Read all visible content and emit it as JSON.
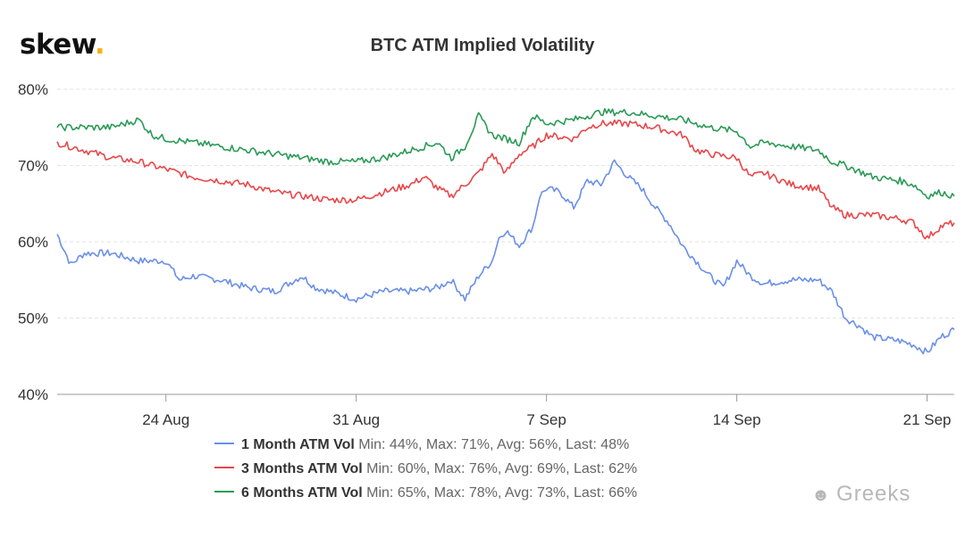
{
  "logo": {
    "text": "skew",
    "dot": "."
  },
  "watermark": {
    "text": "Greeks",
    "icon": "wechat-icon"
  },
  "colors": {
    "s1": "#6a8fe8",
    "s2": "#e8474a",
    "s3": "#2a9a55",
    "grid": "#e3e3e3"
  },
  "chart_data": {
    "type": "line",
    "title": "BTC ATM Implied Volatility",
    "xlabel": "",
    "ylabel": "",
    "ylim": [
      40,
      80
    ],
    "yticks": [
      "40%",
      "50%",
      "60%",
      "70%",
      "80%"
    ],
    "xlim": [
      "2020-08-20",
      "2020-09-22"
    ],
    "xticks": [
      {
        "date": "2020-08-24",
        "label": "24 Aug"
      },
      {
        "date": "2020-08-31",
        "label": "31 Aug"
      },
      {
        "date": "2020-09-07",
        "label": "7 Sep"
      },
      {
        "date": "2020-09-14",
        "label": "14 Sep"
      },
      {
        "date": "2020-09-21",
        "label": "21 Sep"
      }
    ],
    "grid": "horizontal",
    "legend_position": "bottom",
    "series": [
      {
        "name": "1 Month ATM Vol",
        "stats": "Min: 44%, Max: 71%, Avg: 56%, Last: 48%",
        "color": "#6a8fe8",
        "points": [
          [
            "2020-08-20",
            61
          ],
          [
            "2020-08-20T12:00",
            57
          ],
          [
            "2020-08-21",
            58.5
          ],
          [
            "2020-08-22",
            58.5
          ],
          [
            "2020-08-23",
            57.5
          ],
          [
            "2020-08-24",
            57.5
          ],
          [
            "2020-08-24T12:00",
            55
          ],
          [
            "2020-08-25",
            55.5
          ],
          [
            "2020-08-26",
            55
          ],
          [
            "2020-08-27",
            54
          ],
          [
            "2020-08-28",
            53.5
          ],
          [
            "2020-08-29",
            55.5
          ],
          [
            "2020-08-29T12:00",
            54
          ],
          [
            "2020-08-30",
            53.5
          ],
          [
            "2020-08-31",
            52.5
          ],
          [
            "2020-09-01",
            53.5
          ],
          [
            "2020-09-02",
            53.5
          ],
          [
            "2020-09-03",
            54
          ],
          [
            "2020-09-03T12:00",
            55
          ],
          [
            "2020-09-04",
            52.5
          ],
          [
            "2020-09-04T12:00",
            55.5
          ],
          [
            "2020-09-05",
            57.5
          ],
          [
            "2020-09-05T06:00",
            60.5
          ],
          [
            "2020-09-05T12:00",
            61.5
          ],
          [
            "2020-09-06",
            59.5
          ],
          [
            "2020-09-06T12:00",
            62
          ],
          [
            "2020-09-06T18:00",
            66
          ],
          [
            "2020-09-07",
            67
          ],
          [
            "2020-09-07T12:00",
            66.5
          ],
          [
            "2020-09-08",
            64.5
          ],
          [
            "2020-09-08T12:00",
            68
          ],
          [
            "2020-09-09",
            67.5
          ],
          [
            "2020-09-09T12:00",
            70.5
          ],
          [
            "2020-09-10",
            68.5
          ],
          [
            "2020-09-10T12:00",
            67
          ],
          [
            "2020-09-11",
            64.5
          ],
          [
            "2020-09-11T12:00",
            62.5
          ],
          [
            "2020-09-12",
            59.5
          ],
          [
            "2020-09-12T12:00",
            57.5
          ],
          [
            "2020-09-13",
            55.5
          ],
          [
            "2020-09-13T12:00",
            54
          ],
          [
            "2020-09-14",
            57.5
          ],
          [
            "2020-09-14T12:00",
            55.5
          ],
          [
            "2020-09-15",
            54.5
          ],
          [
            "2020-09-16",
            55
          ],
          [
            "2020-09-17",
            55
          ],
          [
            "2020-09-17T12:00",
            53.5
          ],
          [
            "2020-09-18",
            50
          ],
          [
            "2020-09-18T12:00",
            49
          ],
          [
            "2020-09-19",
            47.5
          ],
          [
            "2020-09-20",
            47
          ],
          [
            "2020-09-20T12:00",
            46.5
          ],
          [
            "2020-09-21",
            45.5
          ],
          [
            "2020-09-21T12:00",
            47.5
          ],
          [
            "2020-09-22",
            48.5
          ]
        ]
      },
      {
        "name": "3 Months ATM Vol",
        "stats": "Min: 60%, Max: 76%, Avg: 69%, Last: 62%",
        "color": "#e8474a",
        "points": [
          [
            "2020-08-20",
            73
          ],
          [
            "2020-08-21",
            72
          ],
          [
            "2020-08-22",
            71
          ],
          [
            "2020-08-23",
            70.5
          ],
          [
            "2020-08-24",
            69.5
          ],
          [
            "2020-08-25",
            68.5
          ],
          [
            "2020-08-26",
            68
          ],
          [
            "2020-08-27",
            67.5
          ],
          [
            "2020-08-28",
            66.5
          ],
          [
            "2020-08-29",
            66
          ],
          [
            "2020-08-30",
            65.5
          ],
          [
            "2020-08-31",
            65.5
          ],
          [
            "2020-09-01",
            66.5
          ],
          [
            "2020-09-02",
            67.5
          ],
          [
            "2020-09-02T12:00",
            68.5
          ],
          [
            "2020-09-03",
            67
          ],
          [
            "2020-09-03T12:00",
            66
          ],
          [
            "2020-09-04",
            67.5
          ],
          [
            "2020-09-04T12:00",
            69
          ],
          [
            "2020-09-05",
            71.5
          ],
          [
            "2020-09-05T12:00",
            69
          ],
          [
            "2020-09-06",
            71.5
          ],
          [
            "2020-09-06T12:00",
            72.5
          ],
          [
            "2020-09-07",
            74
          ],
          [
            "2020-09-08",
            73.5
          ],
          [
            "2020-09-08T12:00",
            75
          ],
          [
            "2020-09-09",
            75.5
          ],
          [
            "2020-09-10",
            75.5
          ],
          [
            "2020-09-11",
            75
          ],
          [
            "2020-09-12",
            74
          ],
          [
            "2020-09-12T12:00",
            72
          ],
          [
            "2020-09-13",
            71.5
          ],
          [
            "2020-09-14",
            71
          ],
          [
            "2020-09-14T12:00",
            68.5
          ],
          [
            "2020-09-15",
            69
          ],
          [
            "2020-09-16",
            67.5
          ],
          [
            "2020-09-17",
            67
          ],
          [
            "2020-09-17T12:00",
            64.5
          ],
          [
            "2020-09-18",
            63.5
          ],
          [
            "2020-09-19",
            63.5
          ],
          [
            "2020-09-20",
            63
          ],
          [
            "2020-09-20T12:00",
            62.5
          ],
          [
            "2020-09-21",
            60.5
          ],
          [
            "2020-09-21T12:00",
            62
          ],
          [
            "2020-09-22",
            62.5
          ]
        ]
      },
      {
        "name": "6 Months ATM Vol",
        "stats": "Min: 65%, Max: 78%, Avg: 73%, Last: 66%",
        "color": "#2a9a55",
        "points": [
          [
            "2020-08-20",
            75
          ],
          [
            "2020-08-21",
            75
          ],
          [
            "2020-08-22",
            75
          ],
          [
            "2020-08-23",
            76
          ],
          [
            "2020-08-23T12:00",
            74
          ],
          [
            "2020-08-24",
            73.5
          ],
          [
            "2020-08-25",
            73
          ],
          [
            "2020-08-26",
            72.5
          ],
          [
            "2020-08-27",
            72
          ],
          [
            "2020-08-28",
            71.5
          ],
          [
            "2020-08-29",
            71
          ],
          [
            "2020-08-30",
            70.5
          ],
          [
            "2020-08-31",
            70.5
          ],
          [
            "2020-09-01",
            71
          ],
          [
            "2020-09-02",
            72
          ],
          [
            "2020-09-03",
            73
          ],
          [
            "2020-09-03T12:00",
            71
          ],
          [
            "2020-09-04",
            72.5
          ],
          [
            "2020-09-04T12:00",
            76.5
          ],
          [
            "2020-09-05",
            74
          ],
          [
            "2020-09-06",
            73
          ],
          [
            "2020-09-06T12:00",
            76.5
          ],
          [
            "2020-09-07",
            75.5
          ],
          [
            "2020-09-08",
            76
          ],
          [
            "2020-09-09",
            77
          ],
          [
            "2020-09-10",
            77
          ],
          [
            "2020-09-11",
            76.5
          ],
          [
            "2020-09-12",
            76
          ],
          [
            "2020-09-13",
            75
          ],
          [
            "2020-09-14",
            74.5
          ],
          [
            "2020-09-14T12:00",
            72.5
          ],
          [
            "2020-09-15",
            73
          ],
          [
            "2020-09-16",
            72.5
          ],
          [
            "2020-09-17",
            72
          ],
          [
            "2020-09-17T12:00",
            70.5
          ],
          [
            "2020-09-18",
            70
          ],
          [
            "2020-09-19",
            68.5
          ],
          [
            "2020-09-20",
            68
          ],
          [
            "2020-09-20T12:00",
            67.5
          ],
          [
            "2020-09-21",
            66
          ],
          [
            "2020-09-21T12:00",
            66.5
          ],
          [
            "2020-09-22",
            66
          ]
        ]
      }
    ]
  }
}
